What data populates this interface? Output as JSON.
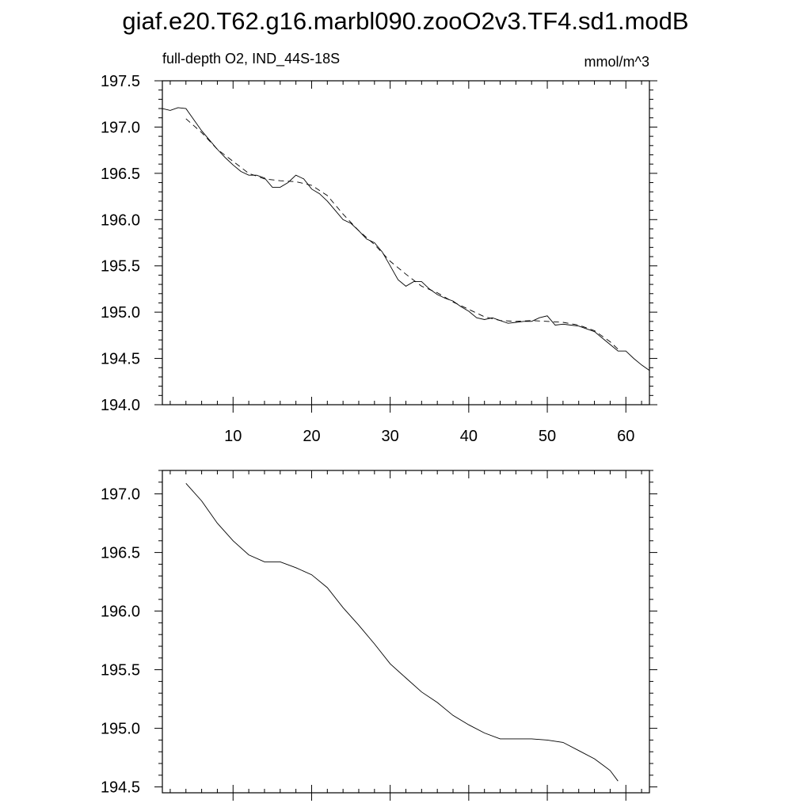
{
  "title": "giaf.e20.T62.g16.marbl090.zooO2v3.TF4.sd1.modB",
  "chart_data": [
    {
      "type": "line",
      "subtitle_left": "full-depth O2, IND_44S-18S",
      "subtitle_right": "mmol/m^3",
      "xlim": [
        1,
        63
      ],
      "ylim": [
        194.0,
        197.5
      ],
      "xticks": [
        10,
        20,
        30,
        40,
        50,
        60
      ],
      "yticks": [
        194.0,
        194.5,
        195.0,
        195.5,
        196.0,
        196.5,
        197.0,
        197.5
      ],
      "grid": false,
      "series": [
        {
          "style": "solid",
          "x": [
            1,
            2,
            3,
            4,
            5,
            6,
            7,
            8,
            9,
            10,
            11,
            12,
            13,
            14,
            15,
            16,
            17,
            18,
            19,
            20,
            21,
            22,
            23,
            24,
            25,
            26,
            27,
            28,
            29,
            30,
            31,
            32,
            33,
            34,
            35,
            36,
            37,
            38,
            39,
            40,
            41,
            42,
            43,
            44,
            45,
            46,
            47,
            48,
            49,
            50,
            51,
            52,
            53,
            54,
            55,
            56,
            57,
            58,
            59,
            60,
            61,
            62,
            63
          ],
          "y": [
            197.2,
            197.18,
            197.21,
            197.2,
            197.08,
            196.96,
            196.86,
            196.76,
            196.67,
            196.59,
            196.52,
            196.48,
            196.48,
            196.45,
            196.35,
            196.35,
            196.4,
            196.48,
            196.44,
            196.33,
            196.28,
            196.2,
            196.1,
            196.0,
            195.96,
            195.88,
            195.79,
            195.75,
            195.65,
            195.5,
            195.35,
            195.28,
            195.33,
            195.33,
            195.25,
            195.19,
            195.15,
            195.12,
            195.06,
            195.01,
            194.94,
            194.92,
            194.94,
            194.91,
            194.88,
            194.89,
            194.9,
            194.9,
            194.94,
            194.96,
            194.86,
            194.87,
            194.86,
            194.85,
            194.82,
            194.79,
            194.72,
            194.65,
            194.58,
            194.58,
            194.5,
            194.43,
            194.37
          ]
        },
        {
          "style": "dashed",
          "x": [
            4,
            6,
            8,
            10,
            12,
            14,
            16,
            18,
            20,
            22,
            24,
            26,
            28,
            30,
            32,
            34,
            36,
            38,
            40,
            42,
            44,
            46,
            48,
            50,
            52,
            54,
            56,
            58,
            59
          ],
          "y": [
            197.09,
            196.94,
            196.76,
            196.63,
            196.5,
            196.44,
            196.42,
            196.41,
            196.37,
            196.26,
            196.06,
            195.88,
            195.73,
            195.55,
            195.41,
            195.28,
            195.21,
            195.11,
            195.03,
            194.95,
            194.91,
            194.9,
            194.91,
            194.9,
            194.89,
            194.86,
            194.8,
            194.68,
            194.6
          ]
        }
      ]
    },
    {
      "type": "line",
      "xlim": [
        1,
        63
      ],
      "ylim": [
        194.45,
        197.2
      ],
      "yticks": [
        194.5,
        195.0,
        195.5,
        196.0,
        196.5,
        197.0
      ],
      "grid": false,
      "series": [
        {
          "style": "solid",
          "x": [
            4,
            6,
            8,
            10,
            12,
            14,
            16,
            18,
            20,
            22,
            24,
            26,
            28,
            30,
            32,
            34,
            36,
            38,
            40,
            42,
            44,
            46,
            48,
            50,
            52,
            54,
            56,
            58,
            59
          ],
          "y": [
            197.09,
            196.94,
            196.75,
            196.6,
            196.48,
            196.42,
            196.42,
            196.37,
            196.31,
            196.2,
            196.03,
            195.88,
            195.72,
            195.55,
            195.43,
            195.31,
            195.22,
            195.11,
            195.03,
            194.96,
            194.91,
            194.91,
            194.91,
            194.9,
            194.88,
            194.81,
            194.74,
            194.64,
            194.55
          ]
        }
      ]
    }
  ]
}
